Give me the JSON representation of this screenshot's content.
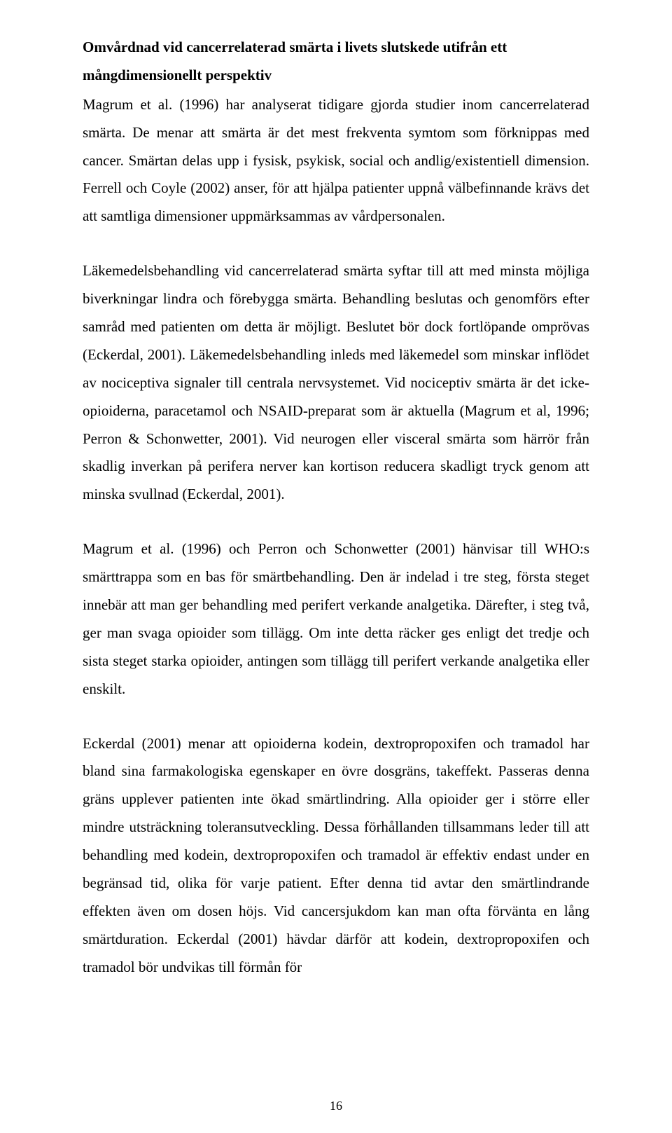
{
  "heading": {
    "line1": "Omvårdnad vid cancerrelaterad smärta i livets slutskede utifrån ett",
    "line2": "mångdimensionellt perspektiv"
  },
  "paragraphs": {
    "p1": "Magrum et al. (1996) har analyserat tidigare gjorda studier inom cancerrelaterad smärta. De menar att smärta är det mest frekventa symtom som förknippas med cancer. Smärtan delas upp i fysisk, psykisk, social och andlig/existentiell dimension. Ferrell och Coyle (2002) anser, för att hjälpa patienter uppnå välbefinnande krävs det att samtliga dimensioner uppmärksammas av vårdpersonalen.",
    "p2": "Läkemedelsbehandling vid cancerrelaterad smärta syftar till att med minsta möjliga biverkningar lindra och förebygga smärta. Behandling beslutas och genomförs efter samråd med patienten om detta är möjligt. Beslutet bör dock fortlöpande omprövas (Eckerdal, 2001). Läkemedelsbehandling inleds med läkemedel som minskar inflödet av nociceptiva signaler till centrala nervsystemet. Vid nociceptiv smärta är det icke-opioiderna, paracetamol och NSAID-preparat som är aktuella (Magrum et al, 1996; Perron & Schonwetter, 2001). Vid neurogen eller visceral smärta som härrör från skadlig inverkan på perifera nerver kan kortison reducera skadligt tryck genom att minska svullnad (Eckerdal, 2001).",
    "p3": "Magrum et al. (1996) och Perron och Schonwetter (2001) hänvisar till WHO:s smärttrappa som en bas för smärtbehandling. Den är indelad i tre steg, första steget innebär att man ger behandling med perifert verkande analgetika. Därefter, i steg två, ger man svaga opioider som tillägg. Om inte detta räcker ges enligt det tredje och sista steget starka opioider, antingen som tillägg till perifert verkande analgetika eller enskilt.",
    "p4": "Eckerdal (2001) menar att opioiderna kodein, dextropropoxifen och tramadol har bland sina farmakologiska egenskaper en övre dosgräns, takeffekt. Passeras denna gräns upplever patienten inte ökad smärtlindring. Alla opioider ger i större eller mindre utsträckning toleransutveckling. Dessa förhållanden tillsammans leder till att behandling med kodein, dextropropoxifen och tramadol är effektiv endast under en begränsad tid, olika för varje patient. Efter denna tid avtar den smärtlindrande effekten även om dosen höjs. Vid cancersjukdom kan man ofta förvänta en lång smärtduration. Eckerdal (2001) hävdar därför att kodein, dextropropoxifen och tramadol bör undvikas till förmån för"
  },
  "pageNumber": "16"
}
